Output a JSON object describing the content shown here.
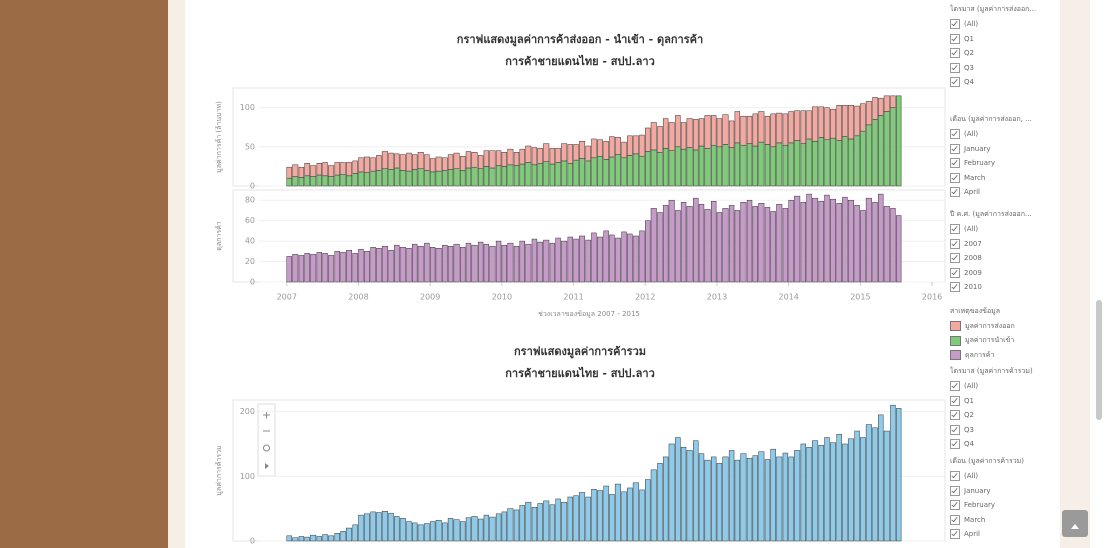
{
  "chart_data": [
    {
      "type": "bar",
      "stacked": true,
      "title": "กราฟแสดงมูลค่าการค้าส่งออก - นำเข้า - ดุลการค้า",
      "subtitle": "การค้าชายแดนไทย - สปป.ลาว",
      "y_label": "มูลค่าการค้า (ล้านบาท)",
      "x": [
        2007,
        2007.08,
        2007.17,
        2007.25,
        2007.33,
        2007.42,
        2007.5,
        2007.58,
        2007.67,
        2007.75,
        2007.83,
        2007.92,
        2008,
        2008.08,
        2008.17,
        2008.25,
        2008.33,
        2008.42,
        2008.5,
        2008.58,
        2008.67,
        2008.75,
        2008.83,
        2008.92,
        2009,
        2009.08,
        2009.17,
        2009.25,
        2009.33,
        2009.42,
        2009.5,
        2009.58,
        2009.67,
        2009.75,
        2009.83,
        2009.92,
        2010,
        2010.08,
        2010.17,
        2010.25,
        2010.33,
        2010.42,
        2010.5,
        2010.58,
        2010.67,
        2010.75,
        2010.83,
        2010.92,
        2011,
        2011.08,
        2011.17,
        2011.25,
        2011.33,
        2011.42,
        2011.5,
        2011.58,
        2011.67,
        2011.75,
        2011.83,
        2011.92,
        2012,
        2012.08,
        2012.17,
        2012.25,
        2012.33,
        2012.42,
        2012.5,
        2012.58,
        2012.67,
        2012.75,
        2012.83,
        2012.92,
        2013,
        2013.08,
        2013.17,
        2013.25,
        2013.33,
        2013.42,
        2013.5,
        2013.58,
        2013.67,
        2013.75,
        2013.83,
        2013.92,
        2014,
        2014.08,
        2014.17,
        2014.25,
        2014.33,
        2014.42,
        2014.5,
        2014.58,
        2014.67,
        2014.75,
        2014.83,
        2014.92,
        2015,
        2015.08,
        2015.17,
        2015.25,
        2015.33,
        2015.42,
        2015.5
      ],
      "xlim": [
        2006.25,
        2016.18
      ],
      "ylim": [
        0,
        125
      ],
      "yticks": [
        0,
        50,
        100
      ],
      "grid": true,
      "series": [
        {
          "name": "มูลค่าการนำเข้า",
          "color": "#7fcb7a",
          "values": [
            10,
            12,
            11,
            13,
            12,
            14,
            13,
            12,
            14,
            15,
            13,
            16,
            18,
            17,
            19,
            20,
            22,
            21,
            23,
            20,
            19,
            21,
            22,
            20,
            18,
            19,
            20,
            21,
            22,
            20,
            23,
            24,
            22,
            25,
            23,
            26,
            25,
            27,
            26,
            28,
            30,
            27,
            29,
            31,
            28,
            30,
            32,
            29,
            33,
            35,
            32,
            36,
            38,
            34,
            37,
            40,
            36,
            39,
            41,
            38,
            44,
            46,
            43,
            48,
            45,
            50,
            47,
            49,
            46,
            51,
            48,
            52,
            50,
            53,
            49,
            55,
            52,
            54,
            51,
            56,
            53,
            50,
            55,
            52,
            55,
            58,
            54,
            60,
            57,
            62,
            59,
            61,
            58,
            63,
            60,
            64,
            70,
            78,
            85,
            90,
            95,
            100,
            115
          ]
        },
        {
          "name": "มูลค่าการส่งออก",
          "color": "#f4a9a0",
          "values": [
            14,
            15,
            13,
            16,
            14,
            15,
            17,
            14,
            16,
            15,
            17,
            16,
            18,
            20,
            17,
            19,
            22,
            21,
            18,
            20,
            23,
            19,
            21,
            20,
            17,
            18,
            16,
            19,
            20,
            18,
            21,
            19,
            17,
            20,
            22,
            19,
            18,
            20,
            17,
            19,
            21,
            22,
            19,
            23,
            20,
            18,
            22,
            24,
            20,
            22,
            19,
            24,
            21,
            23,
            26,
            22,
            20,
            25,
            23,
            27,
            30,
            35,
            33,
            38,
            36,
            40,
            34,
            37,
            39,
            35,
            42,
            38,
            36,
            38,
            34,
            40,
            37,
            35,
            41,
            39,
            36,
            42,
            38,
            40,
            40,
            38,
            42,
            36,
            44,
            39,
            41,
            37,
            45,
            40,
            43,
            38,
            35,
            30,
            28,
            22,
            20,
            15,
            0
          ]
        }
      ]
    },
    {
      "type": "bar",
      "y_label": "ดุลการค้า",
      "x_label": "ช่วงเวลาของข้อมูล 2007 - 2015",
      "x": [
        2007,
        2007.08,
        2007.17,
        2007.25,
        2007.33,
        2007.42,
        2007.5,
        2007.58,
        2007.67,
        2007.75,
        2007.83,
        2007.92,
        2008,
        2008.08,
        2008.17,
        2008.25,
        2008.33,
        2008.42,
        2008.5,
        2008.58,
        2008.67,
        2008.75,
        2008.83,
        2008.92,
        2009,
        2009.08,
        2009.17,
        2009.25,
        2009.33,
        2009.42,
        2009.5,
        2009.58,
        2009.67,
        2009.75,
        2009.83,
        2009.92,
        2010,
        2010.08,
        2010.17,
        2010.25,
        2010.33,
        2010.42,
        2010.5,
        2010.58,
        2010.67,
        2010.75,
        2010.83,
        2010.92,
        2011,
        2011.08,
        2011.17,
        2011.25,
        2011.33,
        2011.42,
        2011.5,
        2011.58,
        2011.67,
        2011.75,
        2011.83,
        2011.92,
        2012,
        2012.08,
        2012.17,
        2012.25,
        2012.33,
        2012.42,
        2012.5,
        2012.58,
        2012.67,
        2012.75,
        2012.83,
        2012.92,
        2013,
        2013.08,
        2013.17,
        2013.25,
        2013.33,
        2013.42,
        2013.5,
        2013.58,
        2013.67,
        2013.75,
        2013.83,
        2013.92,
        2014,
        2014.08,
        2014.17,
        2014.25,
        2014.33,
        2014.42,
        2014.5,
        2014.58,
        2014.67,
        2014.75,
        2014.83,
        2014.92,
        2015,
        2015.08,
        2015.17,
        2015.25,
        2015.33,
        2015.42,
        2015.5
      ],
      "xlim": [
        2006.25,
        2016.18
      ],
      "xticks": [
        2007,
        2008,
        2009,
        2010,
        2011,
        2012,
        2013,
        2014,
        2015,
        2016
      ],
      "ylim": [
        0,
        90
      ],
      "yticks": [
        0,
        20,
        40,
        60,
        80
      ],
      "grid": true,
      "series": [
        {
          "name": "ดุลการค้า",
          "color": "#c69bc9",
          "values": [
            25,
            27,
            26,
            28,
            27,
            29,
            28,
            26,
            30,
            29,
            31,
            28,
            32,
            30,
            34,
            33,
            35,
            31,
            36,
            34,
            33,
            37,
            35,
            38,
            34,
            33,
            36,
            35,
            37,
            34,
            38,
            36,
            39,
            37,
            35,
            40,
            36,
            38,
            35,
            40,
            37,
            42,
            39,
            41,
            38,
            43,
            40,
            44,
            42,
            45,
            41,
            48,
            44,
            50,
            46,
            43,
            49,
            47,
            45,
            50,
            60,
            72,
            68,
            75,
            80,
            70,
            78,
            74,
            82,
            76,
            71,
            79,
            68,
            72,
            75,
            70,
            78,
            80,
            74,
            77,
            73,
            69,
            76,
            72,
            80,
            84,
            78,
            86,
            82,
            79,
            85,
            81,
            77,
            83,
            80,
            75,
            70,
            82,
            78,
            86,
            74,
            72,
            65
          ]
        }
      ]
    },
    {
      "type": "bar",
      "title": "กราฟแสดงมูลค่าการค้ารวม",
      "subtitle": "การค้าชายแดนไทย - สปป.ลาว",
      "y_label": "มูลค่าการค้ารวม",
      "x": [
        2007,
        2007.08,
        2007.17,
        2007.25,
        2007.33,
        2007.42,
        2007.5,
        2007.58,
        2007.67,
        2007.75,
        2007.83,
        2007.92,
        2008,
        2008.08,
        2008.17,
        2008.25,
        2008.33,
        2008.42,
        2008.5,
        2008.58,
        2008.67,
        2008.75,
        2008.83,
        2008.92,
        2009,
        2009.08,
        2009.17,
        2009.25,
        2009.33,
        2009.42,
        2009.5,
        2009.58,
        2009.67,
        2009.75,
        2009.83,
        2009.92,
        2010,
        2010.08,
        2010.17,
        2010.25,
        2010.33,
        2010.42,
        2010.5,
        2010.58,
        2010.67,
        2010.75,
        2010.83,
        2010.92,
        2011,
        2011.08,
        2011.17,
        2011.25,
        2011.33,
        2011.42,
        2011.5,
        2011.58,
        2011.67,
        2011.75,
        2011.83,
        2011.92,
        2012,
        2012.08,
        2012.17,
        2012.25,
        2012.33,
        2012.42,
        2012.5,
        2012.58,
        2012.67,
        2012.75,
        2012.83,
        2012.92,
        2013,
        2013.08,
        2013.17,
        2013.25,
        2013.33,
        2013.42,
        2013.5,
        2013.58,
        2013.67,
        2013.75,
        2013.83,
        2013.92,
        2014,
        2014.08,
        2014.17,
        2014.25,
        2014.33,
        2014.42,
        2014.5,
        2014.58,
        2014.67,
        2014.75,
        2014.83,
        2014.92,
        2015,
        2015.08,
        2015.17,
        2015.25,
        2015.33,
        2015.42,
        2015.5
      ],
      "xlim": [
        2006.25,
        2016.18
      ],
      "ylim": [
        0,
        218
      ],
      "yticks": [
        0,
        100,
        200
      ],
      "grid": true,
      "series": [
        {
          "name": "มูลค่าการค้ารวม",
          "color": "#8ecbea",
          "values": [
            8,
            5,
            7,
            6,
            9,
            7,
            10,
            8,
            12,
            15,
            20,
            25,
            40,
            42,
            45,
            44,
            46,
            43,
            38,
            35,
            30,
            28,
            25,
            27,
            30,
            32,
            28,
            35,
            33,
            30,
            36,
            38,
            34,
            40,
            37,
            42,
            45,
            50,
            48,
            55,
            60,
            52,
            58,
            62,
            56,
            65,
            60,
            68,
            70,
            75,
            68,
            80,
            78,
            85,
            72,
            88,
            76,
            82,
            90,
            79,
            95,
            110,
            120,
            130,
            150,
            160,
            145,
            140,
            155,
            135,
            125,
            130,
            120,
            130,
            140,
            125,
            135,
            128,
            132,
            138,
            126,
            142,
            130,
            136,
            130,
            140,
            150,
            145,
            155,
            148,
            160,
            152,
            165,
            150,
            158,
            170,
            160,
            180,
            175,
            195,
            170,
            210,
            205
          ]
        }
      ]
    }
  ],
  "filters": [
    {
      "title": "ไตรมาส (มูลค่าการส่งออก...",
      "options": [
        "(All)",
        "Q1",
        "Q2",
        "Q3",
        "Q4"
      ]
    },
    {
      "title": "เดือน (มูลค่าการส่งออก, ...",
      "options": [
        "(All)",
        "January",
        "February",
        "March",
        "April"
      ]
    },
    {
      "title": "ปี ค.ศ. (มูลค่าการส่งออก...",
      "options": [
        "(All)",
        "2007",
        "2008",
        "2009",
        "2010"
      ]
    },
    {
      "title": "ไตรมาส (มูลค่าการค้ารวม)",
      "options": [
        "(All)",
        "Q1",
        "Q2",
        "Q3",
        "Q4"
      ]
    },
    {
      "title": "เดือน (มูลค่าการค้ารวม)",
      "options": [
        "(All)",
        "January",
        "February",
        "March",
        "April"
      ]
    }
  ],
  "legend_title": "สาเหตุของข้อมูล"
}
